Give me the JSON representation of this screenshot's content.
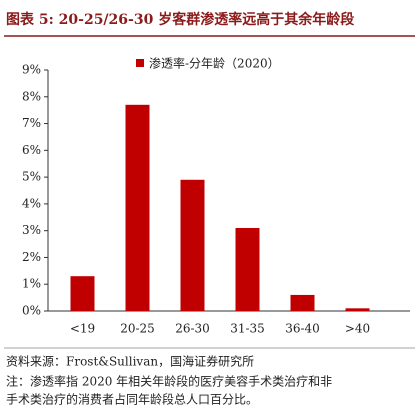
{
  "chart_data": {
    "type": "bar",
    "title": "图表 5: 20-25/26-30 岁客群渗透率远高于其余年龄段",
    "categories": [
      "<19",
      "20-25",
      "26-30",
      "31-35",
      "36-40",
      ">40"
    ],
    "series": [
      {
        "name": "渗透率-分年龄（2020）",
        "color": "#c00000",
        "values": [
          1.3,
          7.7,
          4.9,
          3.1,
          0.6,
          0.1
        ]
      }
    ],
    "ylim": [
      0,
      9
    ],
    "yticks": [
      {
        "value": 0,
        "label": "0%"
      },
      {
        "value": 1,
        "label": "1%"
      },
      {
        "value": 2,
        "label": "2%"
      },
      {
        "value": 3,
        "label": "3%"
      },
      {
        "value": 4,
        "label": "4%"
      },
      {
        "value": 5,
        "label": "5%"
      },
      {
        "value": 6,
        "label": "6%"
      },
      {
        "value": 7,
        "label": "7%"
      },
      {
        "value": 8,
        "label": "8%"
      },
      {
        "value": 9,
        "label": "9%"
      }
    ],
    "grid": false,
    "source": "资料来源：Frost&Sullivan，国海证券研究所",
    "notes": [
      "注：渗透率指 2020 年相关年龄段的医疗美容手术类治疗和非",
      "手术类治疗的消费者占同年龄段总人口百分比。"
    ]
  }
}
